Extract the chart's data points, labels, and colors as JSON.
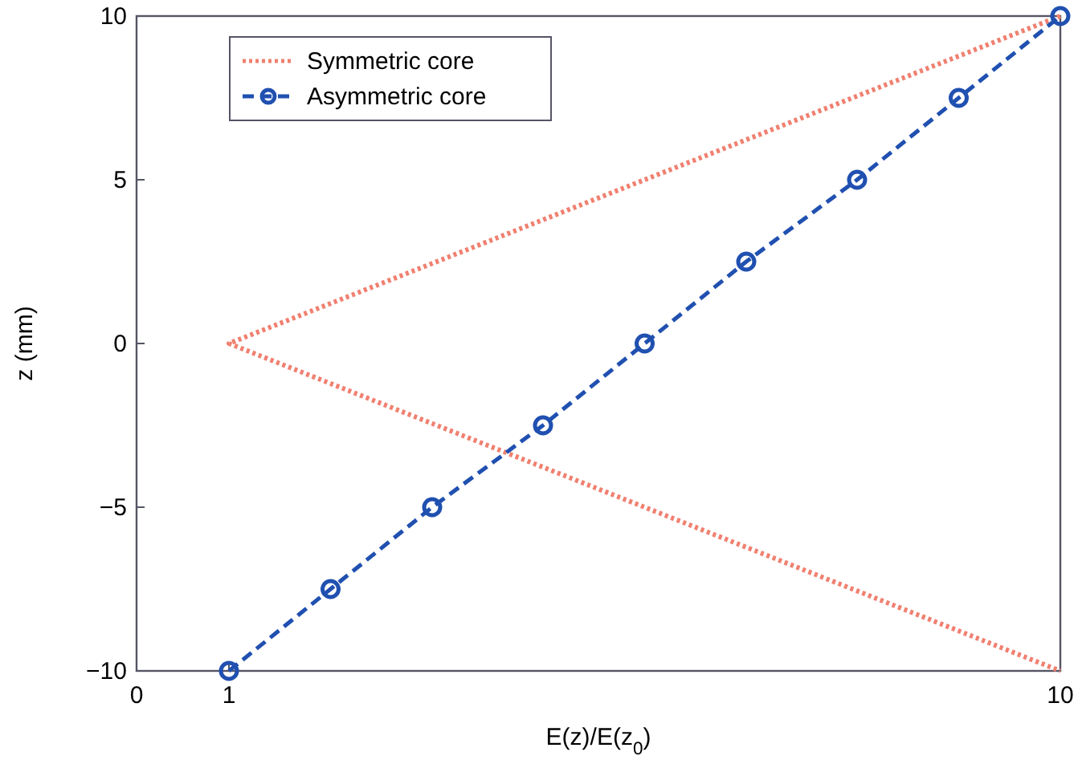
{
  "chart_data": {
    "type": "line",
    "xlabel": "E(z)/E(z$_{0}$)",
    "ylabel": "z (mm)",
    "xlim": [
      0,
      10
    ],
    "xticks": [
      0,
      1,
      10
    ],
    "ylim": [
      -10,
      10
    ],
    "yticks": [
      -10,
      -5,
      0,
      5,
      10
    ],
    "grid": false,
    "legend": "top left",
    "series": [
      {
        "name": "Symmetric core",
        "color": "#f08070",
        "x": [
          10,
          1,
          10
        ],
        "values": [
          10,
          0,
          -10
        ],
        "line_style": "dotted",
        "marker": "none"
      },
      {
        "name": "Asymmetric core",
        "color": "#2050b0",
        "x": [
          1,
          2.1,
          3.2,
          4.4,
          5.5,
          6.6,
          7.8,
          8.9,
          10
        ],
        "values": [
          -10,
          -7.5,
          -5,
          -2.5,
          0,
          2.5,
          5,
          7.5,
          10
        ],
        "line_style": "dashed",
        "marker": "circle"
      }
    ]
  }
}
